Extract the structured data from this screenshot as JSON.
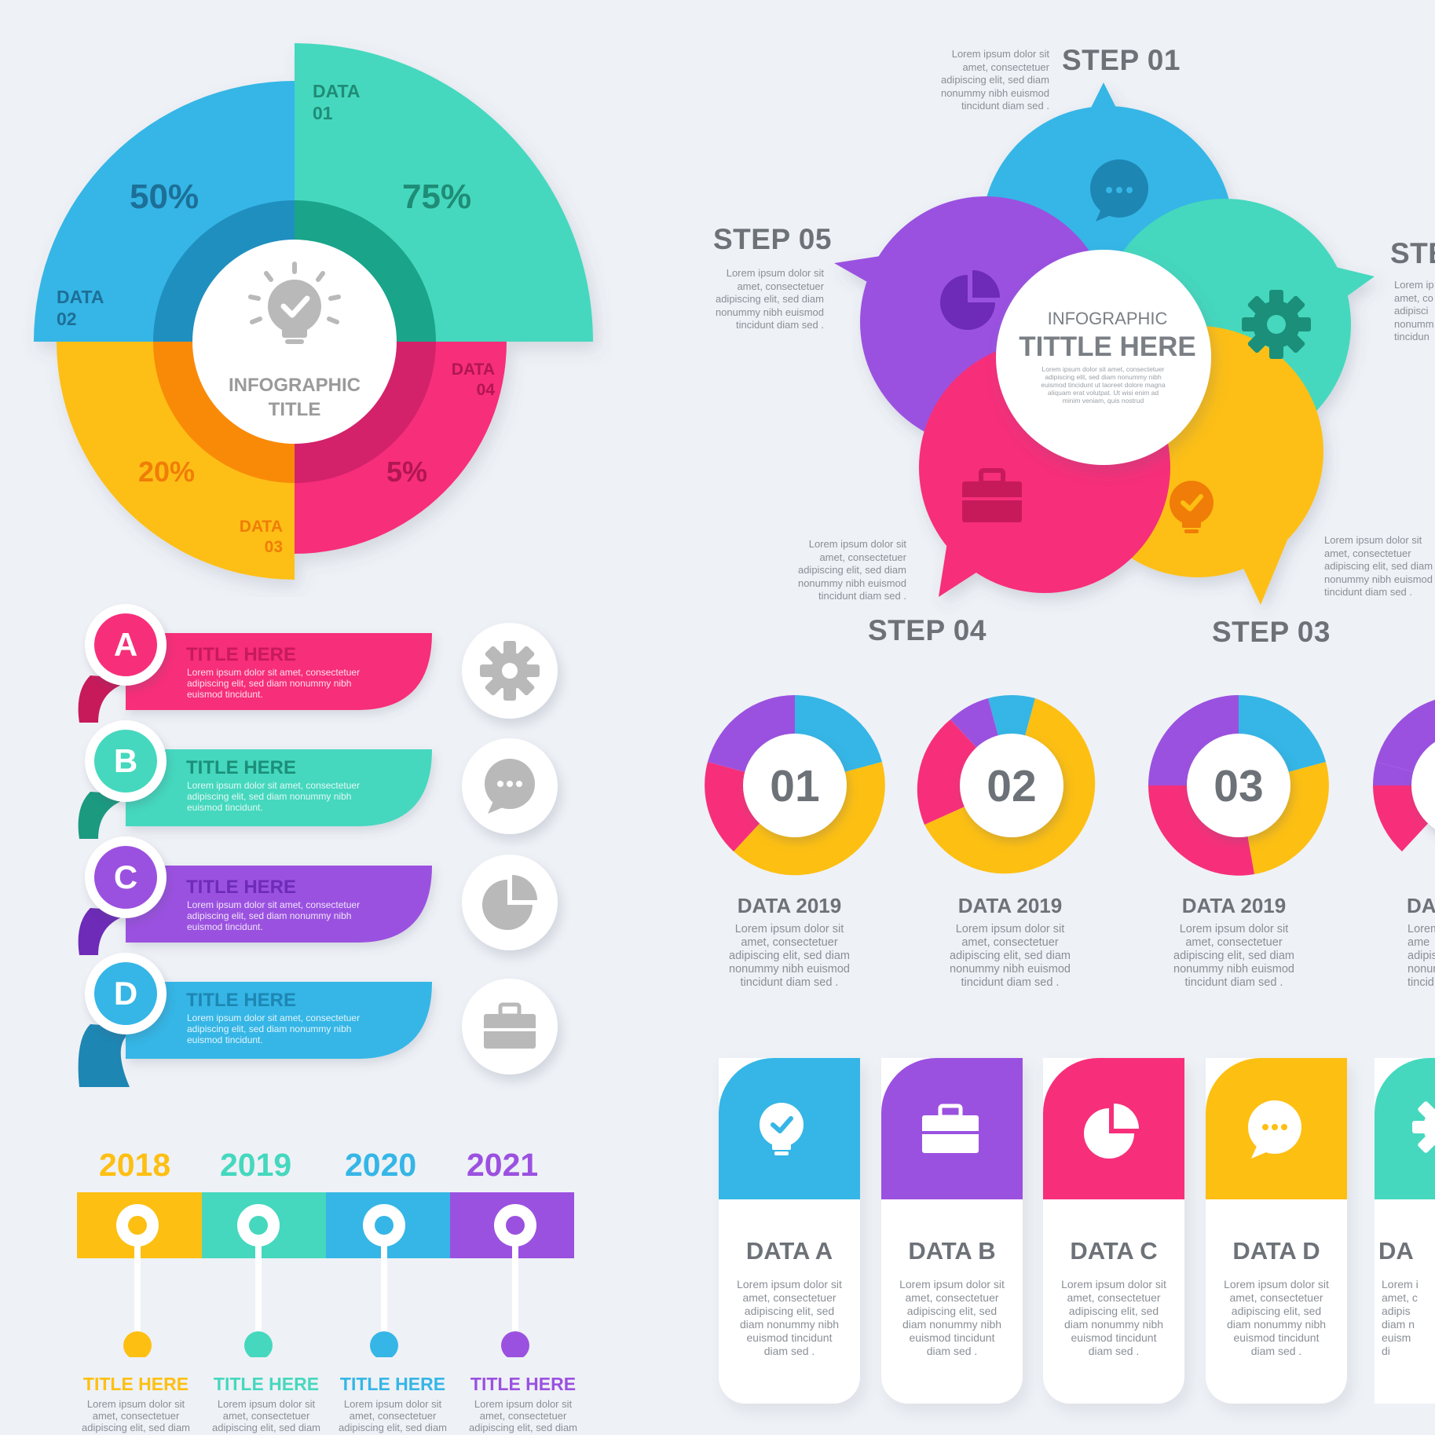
{
  "colors": {
    "blue": "#35b6e6",
    "teal": "#45d8be",
    "pink": "#f72f7a",
    "yellow": "#fdbf12",
    "purple": "#9b51e0",
    "gray_text": "#6d7278",
    "bg": "#eef1f6"
  },
  "pie": {
    "center_title": "INFOGRAPHIC\nTITLE",
    "segments": [
      {
        "label": "DATA\n01",
        "percent": "75%",
        "color": "#45d8be"
      },
      {
        "label": "DATA\n02",
        "percent": "50%",
        "color": "#35b6e6"
      },
      {
        "label": "DATA\n03",
        "percent": "20%",
        "color": "#fdbf12"
      },
      {
        "label": "DATA\n04",
        "percent": "5%",
        "color": "#f72f7a"
      }
    ]
  },
  "steps": {
    "center_top": "INFOGRAPHIC",
    "center_title": "TITTLE HERE",
    "center_text": "Lorem ipsum dolor sit amet, consectetuer adipiscing elit, sed diam nonummy nibh euismod tincidunt ut laoreet dolore magna aliquam erat volutpat. Ut wisi enim ad minim veniam, quis nostrud",
    "items": [
      {
        "title": "STEP 01",
        "text": "Lorem ipsum dolor sit\namet, consectetuer\nadipiscing elit, sed diam\nnonummy nibh euismod\ntincidunt diam  sed ."
      },
      {
        "title": "STE",
        "text": "Lorem ip\namet, co\nadipisci\nnonumm\ntincidun"
      },
      {
        "title": "STEP 03",
        "text": "Lorem ipsum dolor sit\namet, consectetuer\nadipiscing elit, sed diam\nnonummy nibh euismod\ntincidunt diam  sed ."
      },
      {
        "title": "STEP 04",
        "text": "Lorem ipsum dolor sit\namet, consectetuer\nadipiscing elit, sed diam\nnonummy nibh euismod\ntincidunt diam  sed ."
      },
      {
        "title": "STEP 05",
        "text": "Lorem ipsum dolor sit\namet, consectetuer\nadipiscing elit, sed diam\nnonummy nibh euismod\ntincidunt diam  sed ."
      }
    ]
  },
  "ribbons": [
    {
      "letter": "A",
      "title": "TITLE HERE",
      "text": "Lorem ipsum dolor sit amet, consectetuer adipiscing elit, sed diam nonummy nibh euismod tincidunt.",
      "color": "#f72f7a",
      "icon": "gear-icon"
    },
    {
      "letter": "B",
      "title": "TITLE HERE",
      "text": "Lorem ipsum dolor sit amet, consectetuer adipiscing elit, sed diam nonummy nibh euismod tincidunt.",
      "color": "#45d8be",
      "icon": "chat-icon"
    },
    {
      "letter": "C",
      "title": "TITLE HERE",
      "text": "Lorem ipsum dolor sit amet, consectetuer adipiscing elit, sed diam nonummy nibh euismod tincidunt.",
      "color": "#9b51e0",
      "icon": "pie-chart-icon"
    },
    {
      "letter": "D",
      "title": "TITLE HERE",
      "text": "Lorem ipsum dolor sit amet, consectetuer adipiscing elit, sed diam nonummy nibh euismod tincidunt.",
      "color": "#35b6e6",
      "icon": "briefcase-icon"
    }
  ],
  "donuts": [
    {
      "number": "01",
      "title": "DATA 2019",
      "text": "Lorem ipsum dolor sit\namet, consectetuer\nadipiscing elit, sed diam\nnonummy nibh euismod\ntincidunt diam  sed ."
    },
    {
      "number": "02",
      "title": "DATA 2019",
      "text": "Lorem ipsum dolor sit\namet, consectetuer\nadipiscing elit, sed diam\nnonummy nibh euismod\ntincidunt diam  sed ."
    },
    {
      "number": "03",
      "title": "DATA 2019",
      "text": "Lorem ipsum dolor sit\namet, consectetuer\nadipiscing elit, sed diam\nnonummy nibh euismod\ntincidunt diam  sed ."
    },
    {
      "number": "",
      "title": "DA",
      "text": "Lorem\name\nadipisc\nnonum\ntincid"
    }
  ],
  "cards": [
    {
      "title": "DATA A",
      "text": "Lorem ipsum dolor sit\namet, consectetuer\nadipiscing elit, sed\ndiam nonummy nibh\neuismod tincidunt\ndiam  sed .",
      "color": "#35b6e6",
      "icon": "lightbulb-icon"
    },
    {
      "title": "DATA B",
      "text": "Lorem ipsum dolor sit\namet, consectetuer\nadipiscing elit, sed\ndiam nonummy nibh\neuismod tincidunt\ndiam  sed .",
      "color": "#9b51e0",
      "icon": "briefcase-icon"
    },
    {
      "title": "DATA C",
      "text": "Lorem ipsum dolor sit\namet, consectetuer\nadipiscing elit, sed\ndiam nonummy nibh\neuismod tincidunt\ndiam  sed .",
      "color": "#f72f7a",
      "icon": "pie-chart-icon"
    },
    {
      "title": "DATA D",
      "text": "Lorem ipsum dolor sit\namet, consectetuer\nadipiscing elit, sed\ndiam nonummy nibh\neuismod tincidunt\ndiam  sed .",
      "color": "#fdbf12",
      "icon": "chat-icon"
    },
    {
      "title": "DA",
      "text": "Lorem i\namet, c\nadipis\ndiam n\neuism\ndi",
      "color": "#45d8be",
      "icon": "gear-icon"
    }
  ],
  "timeline": [
    {
      "year": "2018",
      "title": "TITLE HERE",
      "text": "Lorem ipsum dolor sit\namet, consectetuer\nadipiscing elit, sed diam",
      "color": "#fdbf12"
    },
    {
      "year": "2019",
      "title": "TITLE HERE",
      "text": "Lorem ipsum dolor sit\namet, consectetuer\nadipiscing elit, sed diam",
      "color": "#45d8be"
    },
    {
      "year": "2020",
      "title": "TITLE HERE",
      "text": "Lorem ipsum dolor sit\namet, consectetuer\nadipiscing elit, sed diam",
      "color": "#35b6e6"
    },
    {
      "year": "2021",
      "title": "TITLE HERE",
      "text": "Lorem ipsum dolor sit\namet, consectetuer\nadipiscing elit, sed diam",
      "color": "#9b51e0"
    }
  ]
}
